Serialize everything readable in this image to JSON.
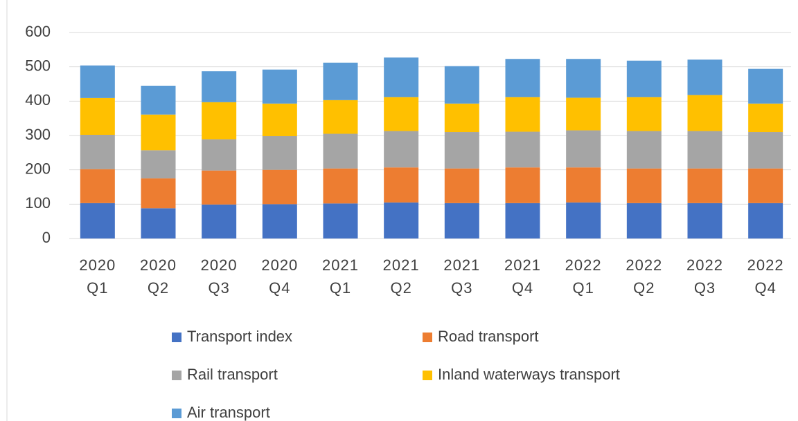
{
  "chart_data": {
    "type": "stacked_bar",
    "categories": [
      "2020 Q1",
      "2020 Q2",
      "2020 Q3",
      "2020 Q4",
      "2021 Q1",
      "2021 Q2",
      "2021 Q3",
      "2021 Q4",
      "2022 Q1",
      "2022 Q2",
      "2022 Q3",
      "2022 Q4"
    ],
    "series": [
      {
        "name": "Transport index",
        "color": "#4472c4",
        "values": [
          103,
          88,
          99,
          100,
          102,
          105,
          103,
          103,
          105,
          103,
          103,
          103
        ]
      },
      {
        "name": "Road transport",
        "color": "#ed7d31",
        "values": [
          99,
          87,
          99,
          100,
          102,
          102,
          101,
          104,
          102,
          101,
          101,
          101
        ]
      },
      {
        "name": "Rail transport",
        "color": "#a5a5a5",
        "values": [
          100,
          82,
          91,
          98,
          101,
          106,
          106,
          104,
          108,
          109,
          109,
          106
        ]
      },
      {
        "name": "Inland waterways transport",
        "color": "#ffc000",
        "values": [
          107,
          104,
          108,
          95,
          98,
          99,
          83,
          101,
          95,
          99,
          105,
          83
        ]
      },
      {
        "name": "Air transport",
        "color": "#5b9bd5",
        "values": [
          95,
          84,
          90,
          99,
          109,
          115,
          109,
          111,
          113,
          106,
          103,
          101
        ]
      }
    ],
    "ylim": [
      0,
      600
    ],
    "yticks": [
      0,
      100,
      200,
      300,
      400,
      500,
      600
    ],
    "grid": true,
    "legend": "bottom"
  }
}
